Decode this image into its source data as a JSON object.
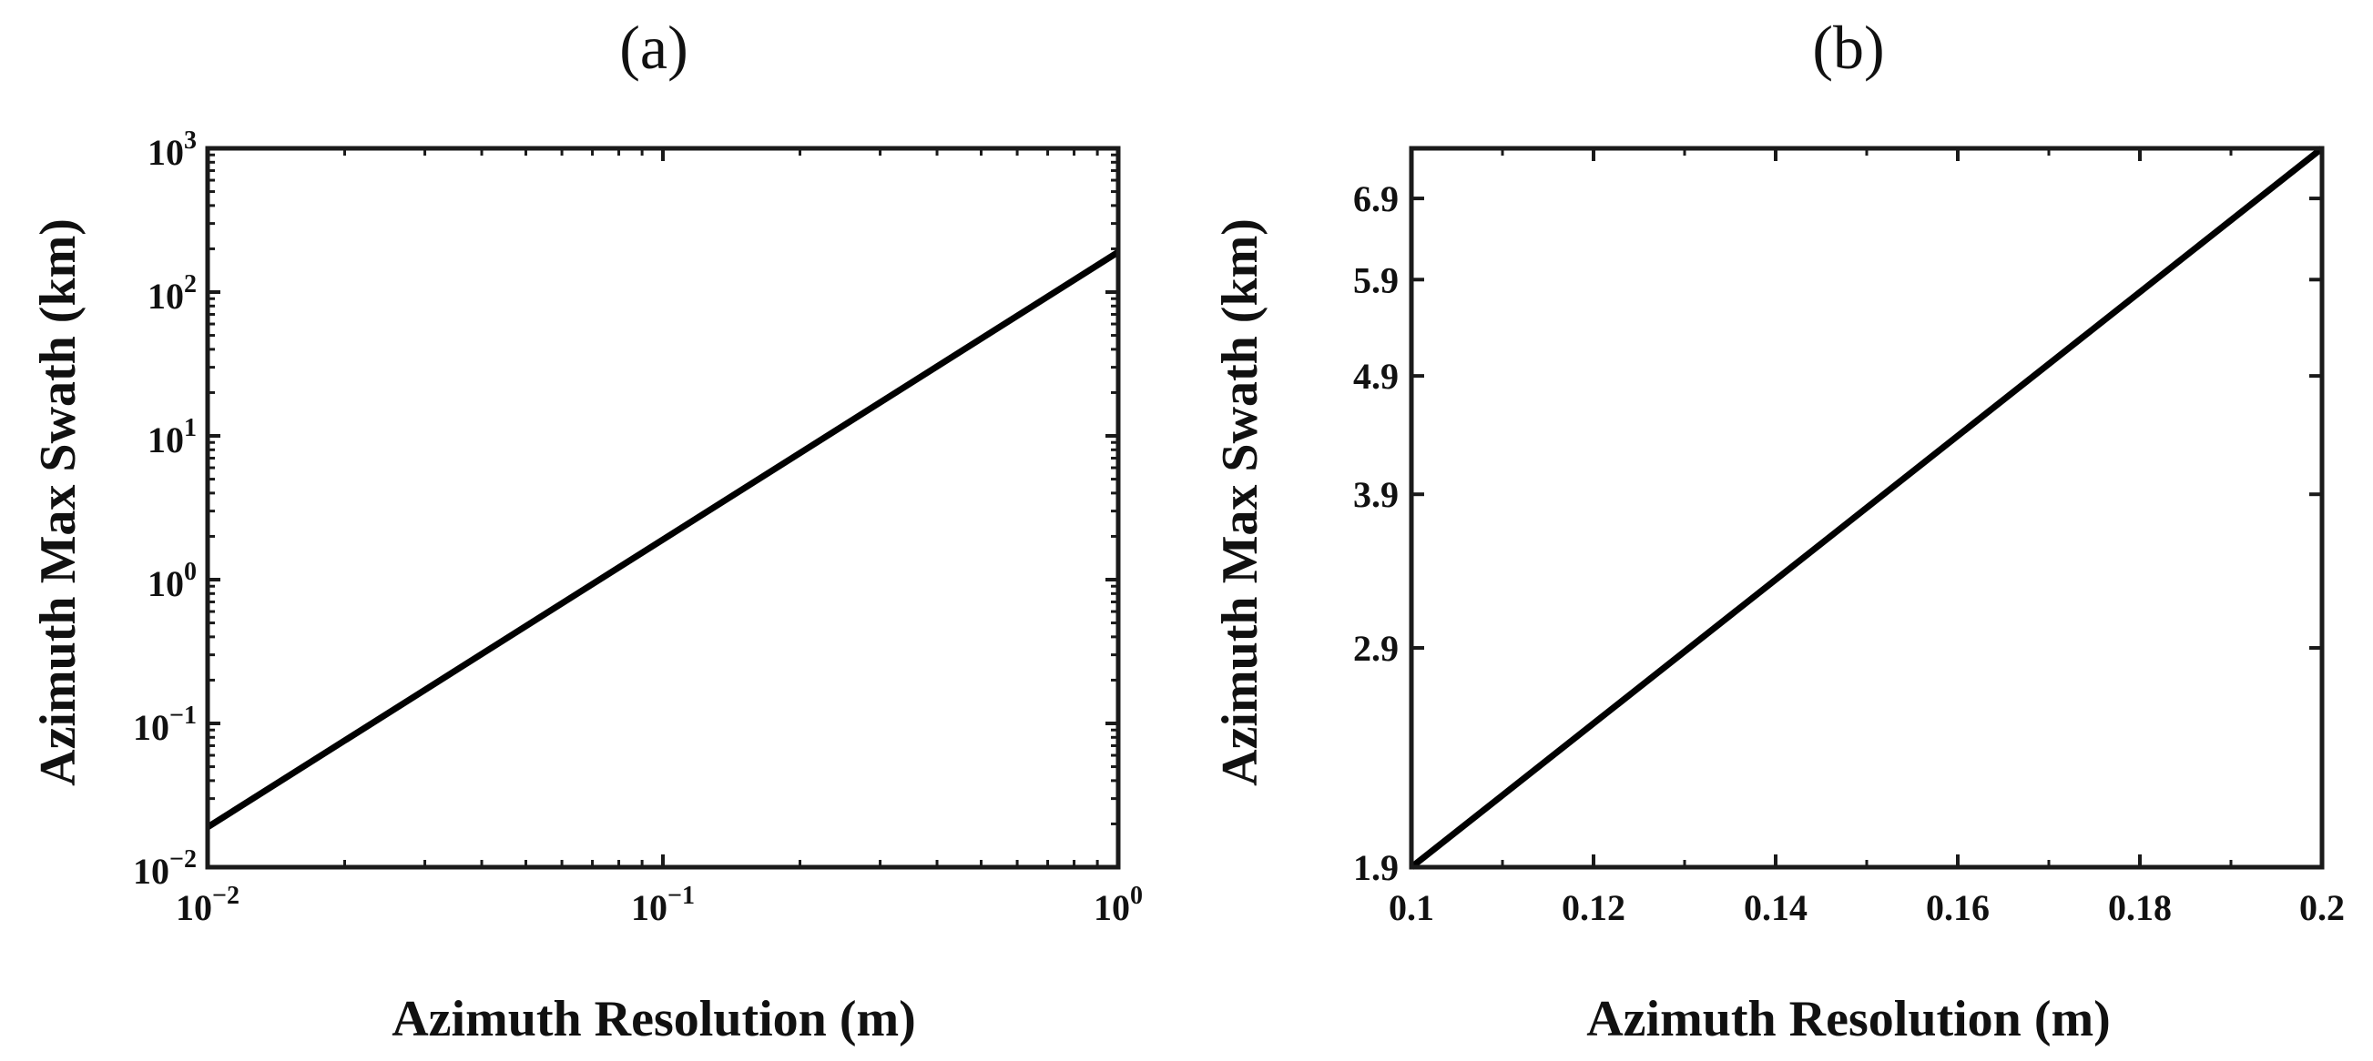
{
  "chart_data": [
    {
      "type": "line",
      "panel_label": "(a)",
      "title": "(a)",
      "xlabel": "Azimuth Resolution (m)",
      "ylabel": "Azimuth Max Swath (km)",
      "xscale": "log",
      "yscale": "log",
      "xlim": [
        0.01,
        1
      ],
      "ylim": [
        0.01,
        1000
      ],
      "grid": false,
      "xticks": [
        {
          "base": "10",
          "exp": "−2",
          "value": 0.01
        },
        {
          "base": "10",
          "exp": "−1",
          "value": 0.1
        },
        {
          "base": "10",
          "exp": "0",
          "value": 1
        }
      ],
      "yticks": [
        {
          "base": "10",
          "exp": "−2",
          "value": 0.01
        },
        {
          "base": "10",
          "exp": "−1",
          "value": 0.1
        },
        {
          "base": "10",
          "exp": "0",
          "value": 1
        },
        {
          "base": "10",
          "exp": "1",
          "value": 10
        },
        {
          "base": "10",
          "exp": "2",
          "value": 100
        },
        {
          "base": "10",
          "exp": "3",
          "value": 1000
        }
      ],
      "series": [
        {
          "name": "Azimuth Max Swath",
          "color": "#000000",
          "x": [
            0.01,
            1
          ],
          "y": [
            0.019,
            190
          ]
        }
      ]
    },
    {
      "type": "line",
      "panel_label": "(b)",
      "title": "(b)",
      "xlabel": "Azimuth Resolution (m)",
      "ylabel": "Azimuth Max Swath (km)",
      "xscale": "linear",
      "yscale": "log",
      "xlim": [
        0.1,
        0.2
      ],
      "ylim": [
        1.9,
        7.6
      ],
      "grid": false,
      "xticks": [
        {
          "label": "0.1",
          "value": 0.1
        },
        {
          "label": "0.12",
          "value": 0.12
        },
        {
          "label": "0.14",
          "value": 0.14
        },
        {
          "label": "0.16",
          "value": 0.16
        },
        {
          "label": "0.18",
          "value": 0.18
        },
        {
          "label": "0.2",
          "value": 0.2
        }
      ],
      "yticks": [
        {
          "label": "1.9",
          "value": 1.9
        },
        {
          "label": "2.9",
          "value": 2.9
        },
        {
          "label": "3.9",
          "value": 3.9
        },
        {
          "label": "4.9",
          "value": 4.9
        },
        {
          "label": "5.9",
          "value": 5.9
        },
        {
          "label": "6.9",
          "value": 6.9
        }
      ],
      "series": [
        {
          "name": "Azimuth Max Swath",
          "color": "#000000",
          "x": [
            0.1,
            0.2
          ],
          "y": [
            1.9,
            7.6
          ]
        }
      ]
    }
  ]
}
